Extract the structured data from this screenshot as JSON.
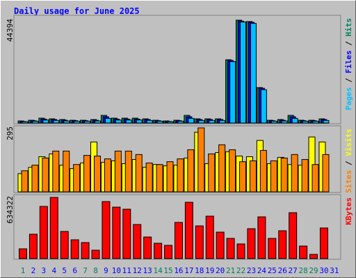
{
  "title": "Daily usage for June 2025",
  "legend_separator": " / ",
  "chart_data": [
    {
      "type": "bar",
      "ylim": [
        0,
        44394
      ],
      "yticks": [
        44394
      ],
      "series": [
        {
          "name": "Hits",
          "color": "#00805c",
          "values": [
            900,
            1200,
            2100,
            1800,
            1500,
            1200,
            1200,
            1500,
            3300,
            2100,
            2100,
            2100,
            1800,
            1200,
            900,
            1200,
            3300,
            1800,
            1800,
            1800,
            27300,
            44394,
            43800,
            15300,
            1200,
            1500,
            3300,
            1200,
            1200,
            1800,
            null
          ]
        },
        {
          "name": "Files",
          "color": "#0000ff",
          "values": [
            700,
            1000,
            1700,
            1500,
            1200,
            1000,
            1000,
            1200,
            2700,
            1700,
            1700,
            1700,
            1500,
            1000,
            700,
            1000,
            2700,
            1500,
            1500,
            1500,
            27000,
            44000,
            43500,
            15000,
            1000,
            1200,
            2700,
            1000,
            1000,
            1500,
            null
          ]
        },
        {
          "name": "Pages",
          "color": "#00c0ff",
          "values": [
            600,
            800,
            1300,
            1100,
            900,
            800,
            800,
            900,
            2000,
            1300,
            1300,
            1300,
            1100,
            800,
            600,
            800,
            2000,
            1100,
            1100,
            1100,
            26500,
            43600,
            43000,
            14400,
            800,
            900,
            2000,
            800,
            800,
            1100,
            null
          ]
        }
      ]
    },
    {
      "type": "bar",
      "ylim": [
        0,
        295
      ],
      "yticks": [
        295
      ],
      "series": [
        {
          "name": "Visits",
          "color": "#ffff00",
          "values": [
            84,
            113,
            162,
            175,
            123,
            107,
            133,
            230,
            136,
            143,
            130,
            149,
            113,
            126,
            120,
            123,
            156,
            275,
            130,
            181,
            185,
            165,
            162,
            237,
            130,
            159,
            126,
            123,
            253,
            230,
            null
          ]
        },
        {
          "name": "Sites",
          "color": "#ff8000",
          "values": [
            97,
            123,
            156,
            188,
            188,
            126,
            168,
            165,
            152,
            188,
            188,
            172,
            133,
            126,
            139,
            152,
            194,
            295,
            175,
            217,
            194,
            139,
            143,
            191,
            143,
            156,
            172,
            149,
            126,
            172,
            null
          ]
        }
      ]
    },
    {
      "type": "bar",
      "ylim": [
        0,
        634322
      ],
      "yticks": [
        634322
      ],
      "categories": [
        "1",
        "2",
        "3",
        "4",
        "5",
        "6",
        "7",
        "8",
        "9",
        "10",
        "11",
        "12",
        "13",
        "14",
        "15",
        "16",
        "17",
        "18",
        "19",
        "20",
        "21",
        "22",
        "23",
        "24",
        "25",
        "26",
        "27",
        "28",
        "29",
        "30",
        "31"
      ],
      "category_colors": [
        "#00805c",
        "#0000ff",
        "#0000ff",
        "#0000ff",
        "#0000ff",
        "#0000ff",
        "#00805c",
        "#00805c",
        "#0000ff",
        "#0000ff",
        "#0000ff",
        "#0000ff",
        "#0000ff",
        "#00805c",
        "#00805c",
        "#0000ff",
        "#0000ff",
        "#0000ff",
        "#0000ff",
        "#0000ff",
        "#00805c",
        "#00805c",
        "#0000ff",
        "#0000ff",
        "#0000ff",
        "#0000ff",
        "#0000ff",
        "#00805c",
        "#00805c",
        "#0000ff",
        "#0000ff"
      ],
      "series": [
        {
          "name": "KBytes",
          "color": "#ff0000",
          "values": [
            100900,
            252300,
            540600,
            634322,
            281100,
            194600,
            165800,
            86500,
            591100,
            533400,
            511800,
            353200,
            223400,
            158600,
            137000,
            374800,
            583800,
            338800,
            439700,
            273900,
            209000,
            151400,
            309900,
            432500,
            209000,
            288300,
            475700,
            129700,
            43200,
            317200,
            null
          ]
        }
      ]
    }
  ]
}
